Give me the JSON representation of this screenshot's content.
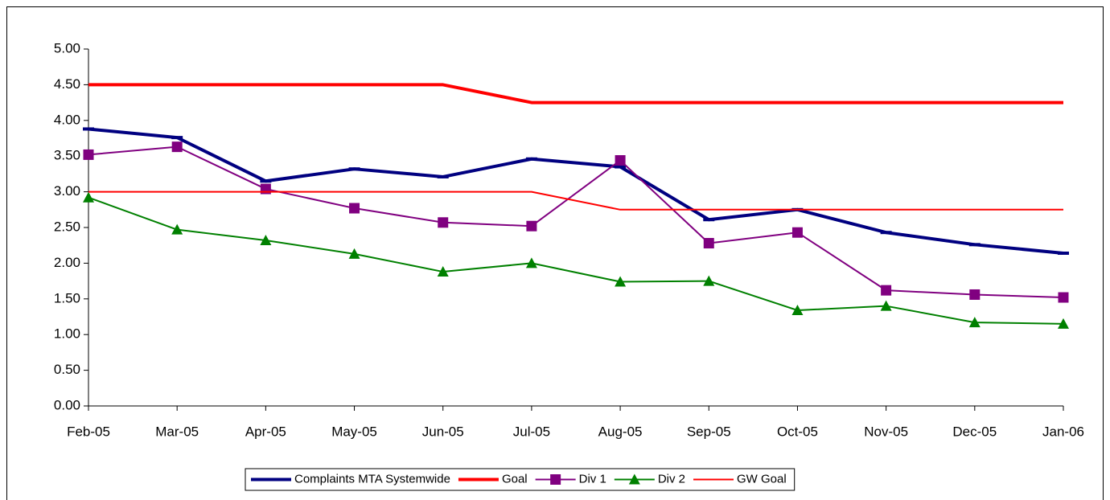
{
  "chart_data": {
    "type": "line",
    "categories": [
      "Feb-05",
      "Mar-05",
      "Apr-05",
      "May-05",
      "Jun-05",
      "Jul-05",
      "Aug-05",
      "Sep-05",
      "Oct-05",
      "Nov-05",
      "Dec-05",
      "Jan-06"
    ],
    "ylim": [
      0,
      5
    ],
    "yticks": [
      {
        "value": 0,
        "label": "0.00"
      },
      {
        "value": 0.5,
        "label": "0.50"
      },
      {
        "value": 1,
        "label": "1.00"
      },
      {
        "value": 1.5,
        "label": "1.50"
      },
      {
        "value": 2,
        "label": "2.00"
      },
      {
        "value": 2.5,
        "label": "2.50"
      },
      {
        "value": 3,
        "label": "3.00"
      },
      {
        "value": 3.5,
        "label": "3.50"
      },
      {
        "value": 4,
        "label": "4.00"
      },
      {
        "value": 4.5,
        "label": "4.50"
      },
      {
        "value": 5,
        "label": "5.00"
      }
    ],
    "grid": false,
    "legend": "bottom",
    "series": [
      {
        "name": "Complaints MTA Systemwide",
        "color": "#000080",
        "width": 4,
        "marker": "dash",
        "values": [
          3.88,
          3.76,
          3.15,
          3.32,
          3.21,
          3.46,
          3.35,
          2.61,
          2.75,
          2.43,
          2.26,
          2.14
        ]
      },
      {
        "name": "Goal",
        "color": "#ff0000",
        "width": 4,
        "marker": "none",
        "values": [
          4.5,
          4.5,
          4.5,
          4.5,
          4.5,
          4.25,
          4.25,
          4.25,
          4.25,
          4.25,
          4.25,
          4.25
        ]
      },
      {
        "name": "Div 1",
        "color": "#800080",
        "width": 2,
        "marker": "square",
        "values": [
          3.52,
          3.63,
          3.04,
          2.77,
          2.57,
          2.52,
          3.44,
          2.28,
          2.43,
          1.62,
          1.56,
          1.52
        ]
      },
      {
        "name": "Div 2",
        "color": "#008000",
        "width": 2,
        "marker": "triangle",
        "values": [
          2.92,
          2.47,
          2.32,
          2.13,
          1.88,
          2.0,
          1.74,
          1.75,
          1.34,
          1.4,
          1.17,
          1.15
        ]
      },
      {
        "name": "GW Goal",
        "color": "#ff0000",
        "width": 2,
        "marker": "none",
        "values": [
          3.0,
          3.0,
          3.0,
          3.0,
          3.0,
          3.0,
          2.75,
          2.75,
          2.75,
          2.75,
          2.75,
          2.75
        ]
      }
    ]
  }
}
